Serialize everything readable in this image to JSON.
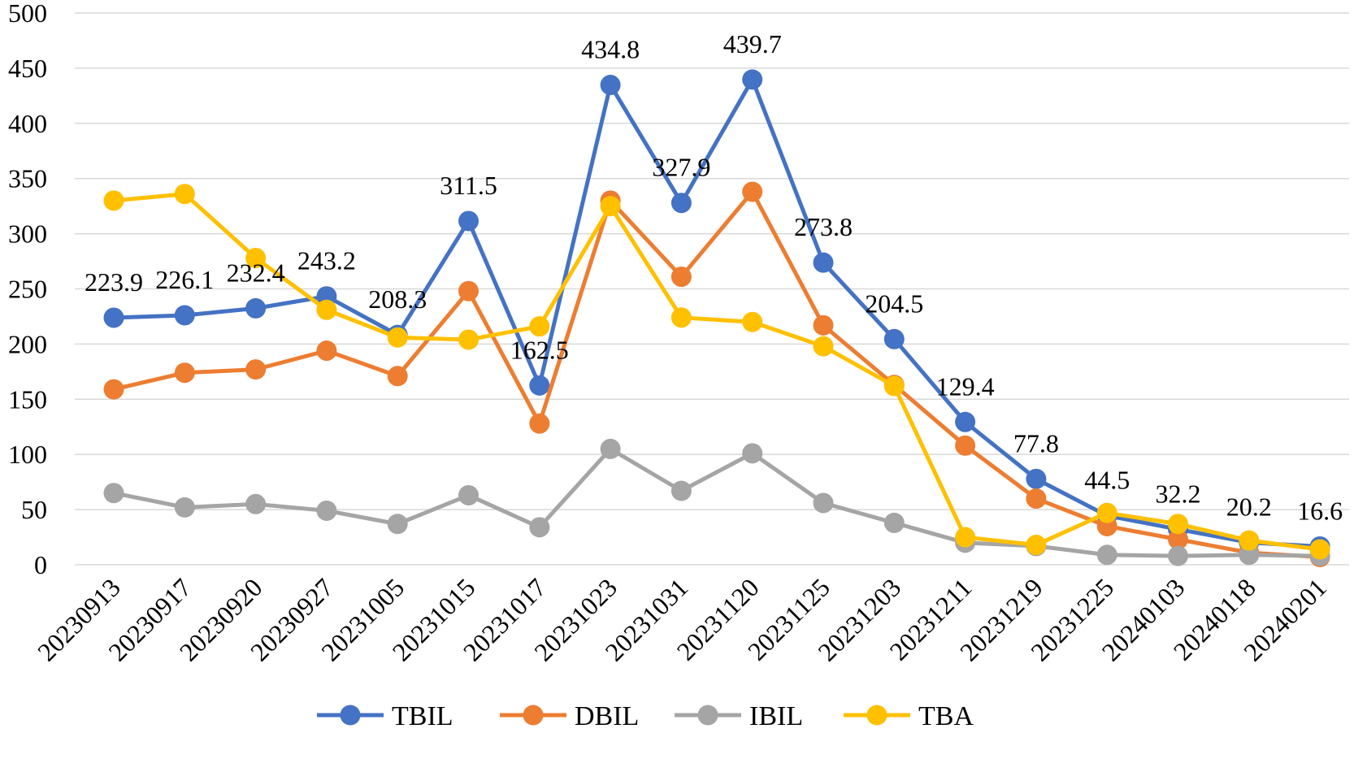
{
  "chart_data": {
    "type": "line",
    "title": "",
    "xlabel": "",
    "ylabel": "",
    "ylim": [
      0,
      500
    ],
    "y_ticks": [
      0,
      50,
      100,
      150,
      200,
      250,
      300,
      350,
      400,
      450,
      500
    ],
    "grid": true,
    "legend_position": "bottom",
    "categories": [
      "20230913",
      "20230917",
      "20230920",
      "20230927",
      "20231005",
      "20231015",
      "20231017",
      "20231023",
      "20231031",
      "20231120",
      "20231125",
      "20231203",
      "20231211",
      "20231219",
      "20231225",
      "20240103",
      "20240118",
      "20240201"
    ],
    "series": [
      {
        "name": "TBIL",
        "color": "#4472c4",
        "values": [
          223.9,
          226.1,
          232.4,
          243.2,
          208.3,
          311.5,
          162.5,
          434.8,
          327.9,
          439.7,
          273.8,
          204.5,
          129.4,
          77.8,
          44.5,
          32.2,
          20.2,
          16.6
        ]
      },
      {
        "name": "DBIL",
        "color": "#ed7d31",
        "values": [
          159,
          174,
          177,
          194,
          171,
          248,
          128,
          330,
          261,
          338,
          217,
          163,
          108,
          60,
          35,
          23,
          11,
          7
        ]
      },
      {
        "name": "IBIL",
        "color": "#a5a5a5",
        "values": [
          65,
          52,
          55,
          49,
          37,
          63,
          34,
          105,
          67,
          101,
          56,
          38,
          20,
          17,
          9,
          8,
          9,
          8
        ]
      },
      {
        "name": "TBA",
        "color": "#ffc000",
        "values": [
          330,
          336,
          278,
          231,
          206,
          204,
          216,
          325,
          224,
          220,
          198,
          162,
          25,
          18,
          47,
          37,
          22,
          14
        ]
      }
    ],
    "data_labels": {
      "series": "TBIL",
      "texts": [
        "223.9",
        "226.1",
        "232.4",
        "243.2",
        "208.3",
        "311.5",
        "162.5",
        "434.8",
        "327.9",
        "439.7",
        "273.8",
        "204.5",
        "129.4",
        "77.8",
        "44.5",
        "32.2",
        "20.2",
        "16.6"
      ]
    }
  }
}
